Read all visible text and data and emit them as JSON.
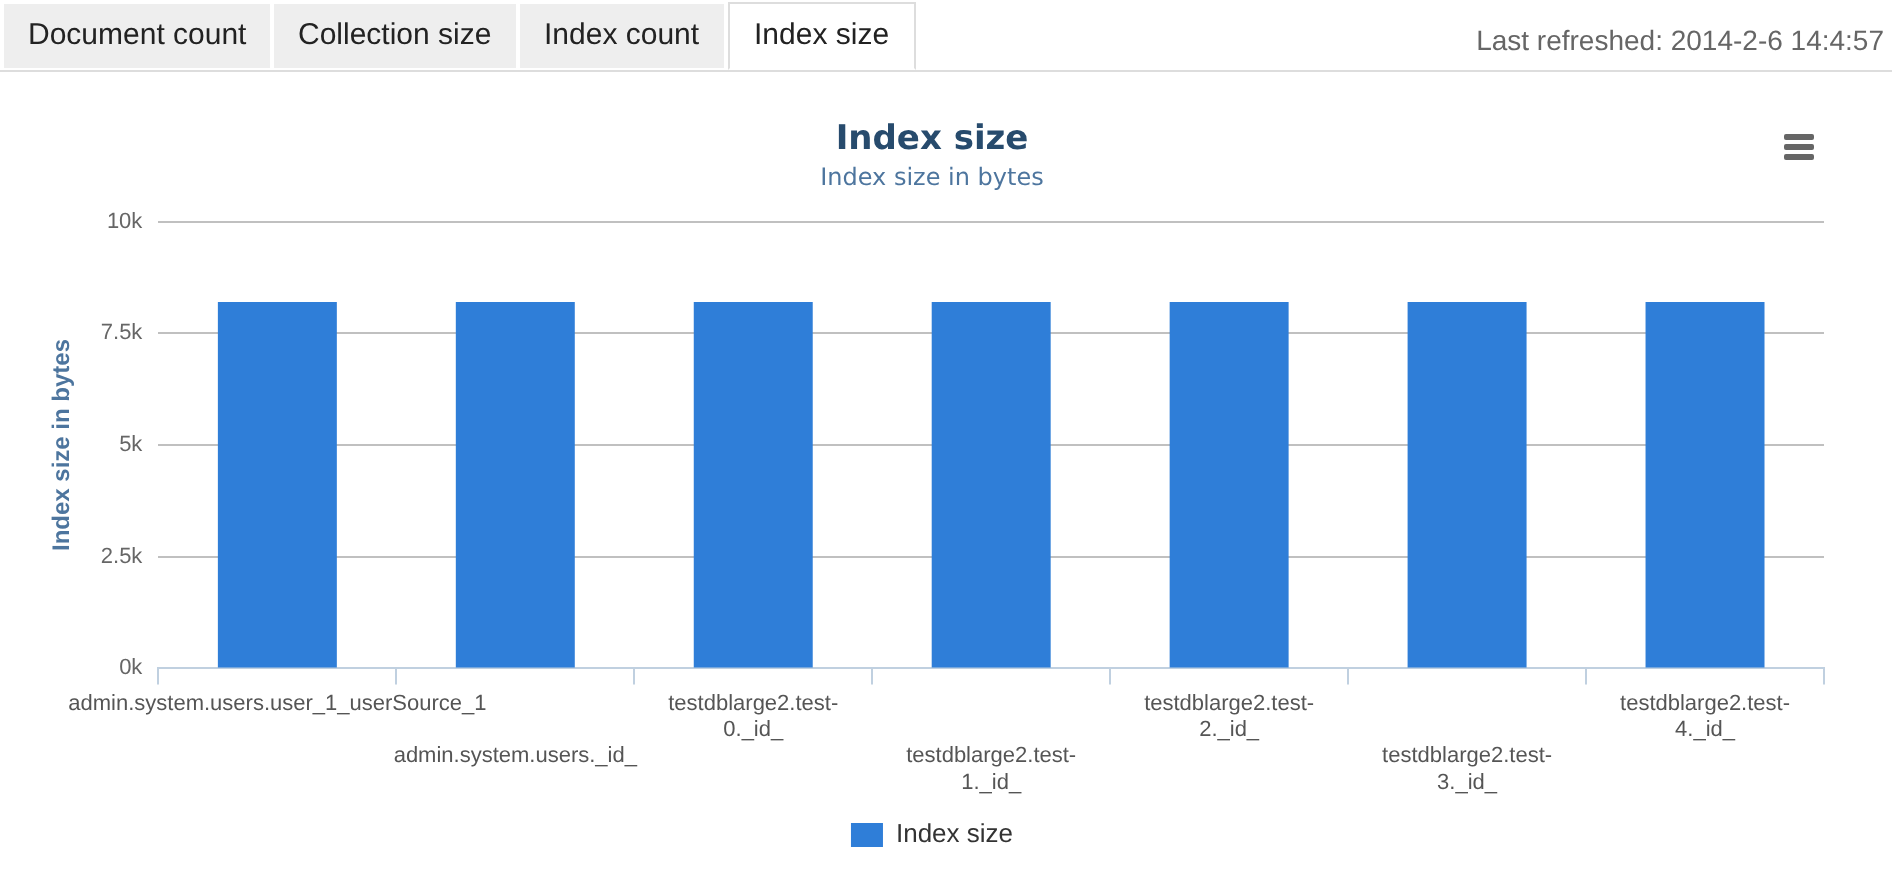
{
  "chart_data": {
    "type": "bar",
    "title": "Index size",
    "subtitle": "Index size in bytes",
    "ylabel": "Index size in bytes",
    "categories": [
      "admin.system.users.user_1_userSource_1",
      "admin.system.users._id_",
      "testdblarge2.test-0._id_",
      "testdblarge2.test-1._id_",
      "testdblarge2.test-2._id_",
      "testdblarge2.test-3._id_",
      "testdblarge2.test-4._id_"
    ],
    "series": [
      {
        "name": "Index size",
        "color": "#2f7ed8",
        "values": [
          8200,
          8200,
          8200,
          8200,
          8200,
          8200,
          8200
        ]
      }
    ],
    "ylim": [
      0,
      10000
    ],
    "yticks": [
      {
        "value": 0,
        "label": "0k"
      },
      {
        "value": 2500,
        "label": "2.5k"
      },
      {
        "value": 5000,
        "label": "5k"
      },
      {
        "value": 7500,
        "label": "7.5k"
      },
      {
        "value": 10000,
        "label": "10k"
      }
    ],
    "grid": "y",
    "legend": "bottom",
    "annotations": [
      "Document count",
      "Collection size",
      "Index count",
      "Index size",
      "Last refreshed: 2014-2-6 14:4:57"
    ]
  }
}
